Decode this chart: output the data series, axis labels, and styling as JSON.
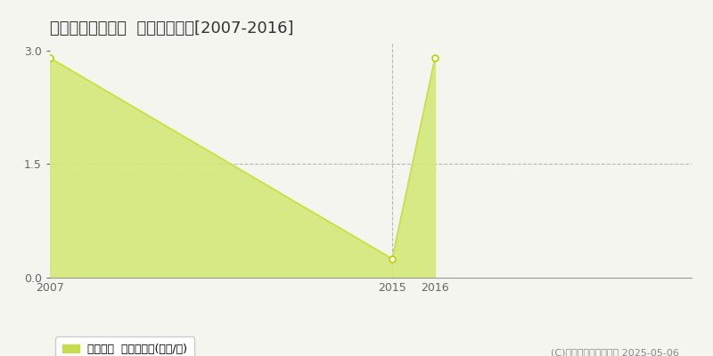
{
  "title": "西伯郡大山町東坪  土地価格推移[2007-2016]",
  "years": [
    2007,
    2015,
    2016
  ],
  "values": [
    2.9,
    0.25,
    2.9
  ],
  "line_color": "#c8e040",
  "fill_color": "#d4e878",
  "fill_alpha": 0.9,
  "marker_color": "#b8d400",
  "marker_facecolor": "white",
  "marker_size": 5,
  "marker_linewidth": 1.2,
  "ylim": [
    0,
    3.1
  ],
  "yticks": [
    0,
    1.5,
    3
  ],
  "xlim": [
    2007,
    2022
  ],
  "xticks": [
    2007,
    2015,
    2016
  ],
  "grid_color": "#aaaaaa",
  "grid_linestyle": "--",
  "grid_alpha": 0.8,
  "background_color": "#f5f5f0",
  "legend_label": "土地価格  平均坪単価(万円/坪)",
  "legend_color": "#c8dc50",
  "copyright_text": "(C)土地価格ドットコム 2025-05-06",
  "title_fontsize": 13,
  "tick_fontsize": 9,
  "legend_fontsize": 9,
  "copyright_fontsize": 8,
  "spine_color": "#999999",
  "tick_color": "#666666"
}
